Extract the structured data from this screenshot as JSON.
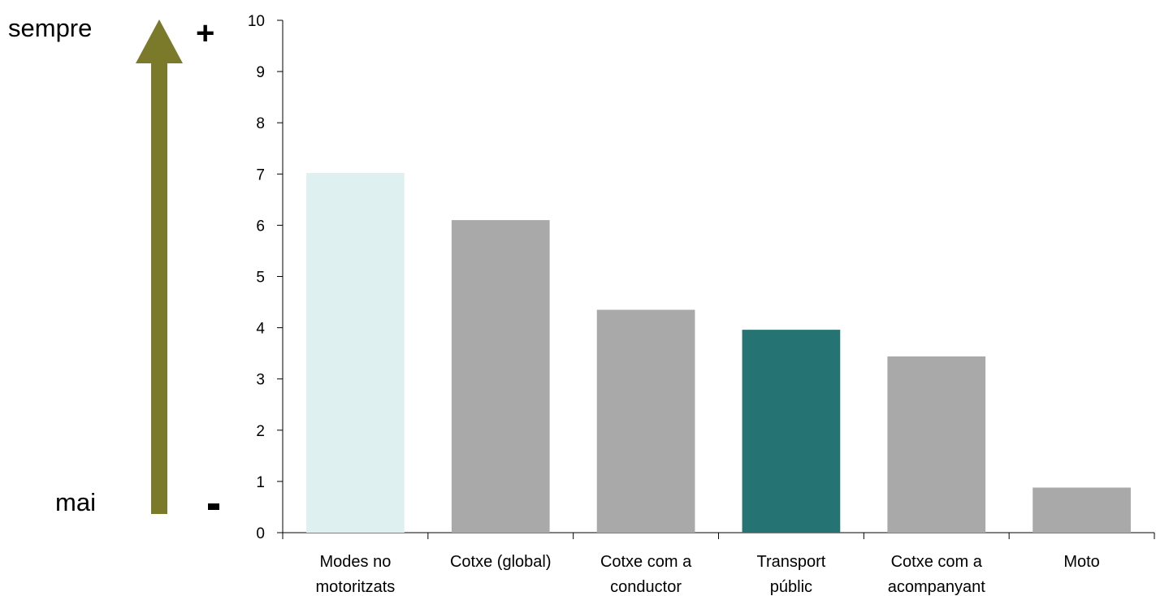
{
  "chart_data": {
    "type": "bar",
    "categories": [
      [
        "Modes no",
        "motoritzats"
      ],
      [
        "Cotxe (global)"
      ],
      [
        "Cotxe com a",
        "conductor"
      ],
      [
        "Transport",
        "públic"
      ],
      [
        "Cotxe com a",
        "acompanyant"
      ],
      [
        "Moto"
      ]
    ],
    "values": [
      7.02,
      6.1,
      4.35,
      3.96,
      3.44,
      0.88
    ],
    "bar_colors": [
      "#dff0f0",
      "#a9a9a9",
      "#a9a9a9",
      "#267373",
      "#a9a9a9",
      "#a9a9a9"
    ],
    "ylim": [
      0,
      10
    ],
    "yticks": [
      0,
      1,
      2,
      3,
      4,
      5,
      6,
      7,
      8,
      9,
      10
    ],
    "grid": false,
    "legend": "none",
    "title": "",
    "xlabel": "",
    "ylabel": ""
  },
  "scale_indicator": {
    "top_label": "sempre",
    "bottom_label": "mai",
    "plus_sign": "+",
    "minus_sign": "-",
    "arrow_color": "#7a7a2a",
    "arrow_icon": "up-arrow-icon"
  }
}
